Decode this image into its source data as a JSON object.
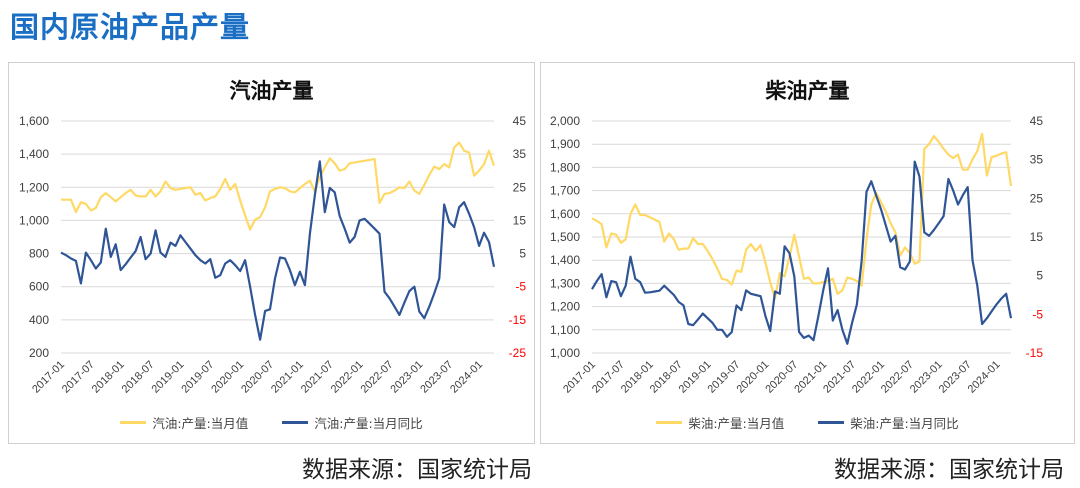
{
  "page_title": "国内原油产品产量",
  "colors": {
    "output": "#ffd966",
    "yoy": "#2f5597",
    "negative_tick": "#ff0000",
    "grid": "#d9d9d9"
  },
  "sources": [
    "数据来源：国家统计局",
    "数据来源：国家统计局"
  ],
  "chart_data": [
    {
      "type": "line",
      "title": "汽油产量",
      "start": "2017-01",
      "xticks": [
        "2017-01",
        "2017-07",
        "2018-01",
        "2018-07",
        "2019-01",
        "2019-07",
        "2020-01",
        "2020-07",
        "2021-01",
        "2021-07",
        "2022-01",
        "2022-07",
        "2023-01",
        "2023-07",
        "2024-01"
      ],
      "ylim": [
        200,
        1600
      ],
      "yticks": [
        200,
        400,
        600,
        800,
        1000,
        1200,
        1400,
        1600
      ],
      "yticklabels": [
        "200",
        "400",
        "600",
        "800",
        "1,000",
        "1,200",
        "1,400",
        "1,600"
      ],
      "y2lim": [
        -25,
        45
      ],
      "y2ticks": [
        -25,
        -15,
        -5,
        5,
        15,
        25,
        35,
        45
      ],
      "grid": true,
      "legend_position": "bottom",
      "series": [
        {
          "name": "汽油:产量:当月值",
          "axis": "left",
          "values": [
            1125,
            1125,
            1125,
            1050,
            1110,
            1100,
            1060,
            1075,
            1140,
            1165,
            1140,
            1115,
            1140,
            1165,
            1185,
            1150,
            1145,
            1145,
            1185,
            1145,
            1175,
            1235,
            1195,
            1185,
            1190,
            1195,
            1200,
            1155,
            1165,
            1120,
            1135,
            1145,
            1190,
            1250,
            1185,
            1220,
            1120,
            1030,
            945,
            1005,
            1020,
            1080,
            1175,
            1190,
            1200,
            1195,
            1175,
            1170,
            1195,
            1220,
            1240,
            1175,
            1260,
            1320,
            1375,
            1345,
            1300,
            1310,
            1345,
            1350,
            1355,
            1360,
            1365,
            1370,
            1105,
            1160,
            1165,
            1180,
            1200,
            1195,
            1235,
            1180,
            1160,
            1215,
            1275,
            1325,
            1310,
            1340,
            1320,
            1440,
            1470,
            1420,
            1410,
            1270,
            1300,
            1340,
            1420,
            1330
          ]
        },
        {
          "name": "汽油:产量:当月同比",
          "axis": "right",
          "values": [
            5.3,
            4.5,
            3.5,
            2.8,
            -4,
            5.3,
            3,
            0.5,
            2.3,
            12.5,
            4,
            7.8,
            0,
            1.8,
            3.8,
            5.8,
            10,
            3.3,
            5,
            12,
            5.3,
            4,
            8.3,
            7.3,
            10.5,
            8.5,
            6.5,
            4.5,
            3,
            2,
            3.3,
            -2.3,
            -1.5,
            2,
            3,
            1.5,
            -0.3,
            3,
            -5,
            -13.5,
            -21,
            -12.3,
            -11.8,
            -2.5,
            3.8,
            3.5,
            0,
            -4.5,
            -0.5,
            -4.5,
            11,
            22.5,
            32.8,
            17.5,
            24.8,
            23.5,
            16.3,
            12.5,
            8.3,
            10,
            15,
            15.5,
            14,
            12.5,
            11,
            -6.5,
            -8.5,
            -11,
            -13.5,
            -9.8,
            -6.3,
            -5,
            -12.5,
            -14.5,
            -11,
            -7,
            -2.5,
            19.8,
            14.5,
            13,
            19,
            20.5,
            17,
            13,
            7.3,
            11.3,
            8.5,
            1
          ]
        }
      ]
    },
    {
      "type": "line",
      "title": "柴油产量",
      "start": "2017-01",
      "xticks": [
        "2017-01",
        "2017-07",
        "2018-01",
        "2018-07",
        "2019-01",
        "2019-07",
        "2020-01",
        "2020-07",
        "2021-01",
        "2021-07",
        "2022-01",
        "2022-07",
        "2023-01",
        "2023-07",
        "2024-01"
      ],
      "ylim": [
        1000,
        2000
      ],
      "yticks": [
        1000,
        1100,
        1200,
        1300,
        1400,
        1500,
        1600,
        1700,
        1800,
        1900,
        2000
      ],
      "yticklabels": [
        "1,000",
        "1,100",
        "1,200",
        "1,300",
        "1,400",
        "1,500",
        "1,600",
        "1,700",
        "1,800",
        "1,900",
        "2,000"
      ],
      "y2lim": [
        -15,
        45
      ],
      "y2ticks": [
        -15,
        -5,
        5,
        15,
        25,
        35,
        45
      ],
      "grid": true,
      "legend_position": "bottom",
      "series": [
        {
          "name": "柴油:产量:当月值",
          "axis": "left",
          "values": [
            1580,
            1570,
            1555,
            1455,
            1515,
            1510,
            1475,
            1490,
            1600,
            1640,
            1595,
            1595,
            1585,
            1575,
            1565,
            1480,
            1515,
            1490,
            1445,
            1450,
            1450,
            1495,
            1470,
            1470,
            1440,
            1405,
            1365,
            1320,
            1315,
            1295,
            1355,
            1350,
            1445,
            1470,
            1440,
            1465,
            1390,
            1305,
            1235,
            1345,
            1330,
            1415,
            1510,
            1415,
            1320,
            1325,
            1300,
            1300,
            1305,
            1310,
            1320,
            1255,
            1270,
            1325,
            1320,
            1310,
            1290,
            1490,
            1640,
            1690,
            1650,
            1610,
            1560,
            1520,
            1420,
            1455,
            1430,
            1385,
            1395,
            1880,
            1900,
            1935,
            1910,
            1880,
            1855,
            1840,
            1855,
            1790,
            1790,
            1835,
            1870,
            1945,
            1765,
            1845,
            1850,
            1860,
            1865,
            1720
          ]
        },
        {
          "name": "柴油:产量:当月同比",
          "axis": "right",
          "values": [
            1.5,
            3.6,
            5.4,
            -0.6,
            3.6,
            3.3,
            -0.3,
            2.4,
            9.9,
            4.2,
            3.3,
            0.6,
            0.7,
            0.9,
            1.1,
            2.4,
            1.2,
            0,
            -1.8,
            -2.7,
            -7.5,
            -7.8,
            -6.3,
            -4.8,
            -6,
            -7.2,
            -9,
            -9,
            -10.8,
            -9.6,
            -2.7,
            -3.9,
            1.2,
            0.3,
            0,
            -0.3,
            -5.4,
            -9.3,
            0.9,
            0.3,
            12.6,
            10.8,
            4.8,
            -9.6,
            -11.1,
            -10.5,
            -11.7,
            -5.4,
            1.2,
            6.9,
            -6.6,
            -3.9,
            -9,
            -12.6,
            -7.2,
            -2.4,
            9,
            26.7,
            29.4,
            25.8,
            22.2,
            18,
            13.8,
            15.3,
            7.2,
            6.6,
            8.7,
            34.5,
            30.6,
            16.2,
            15.3,
            16.8,
            18.6,
            20.4,
            30,
            27,
            23.4,
            25.8,
            27.9,
            9,
            2.4,
            -7.5,
            -6,
            -4.2,
            -2.4,
            -0.9,
            0.3,
            -6
          ]
        }
      ]
    }
  ]
}
